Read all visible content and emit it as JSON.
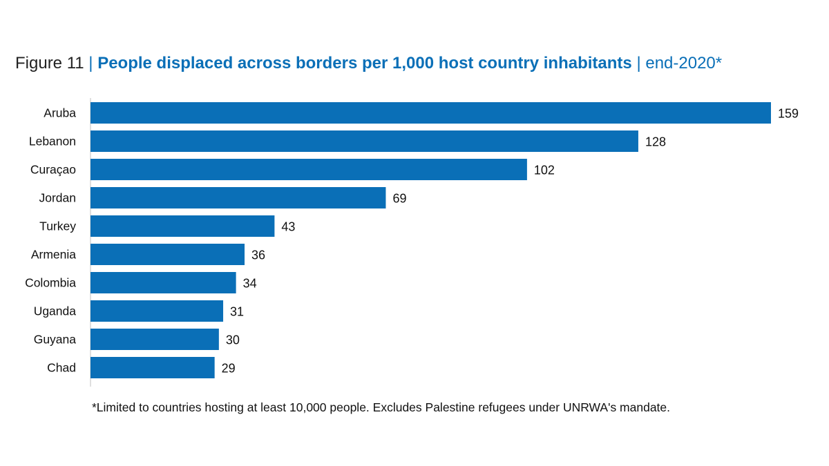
{
  "colors": {
    "bar": "#0a6fb7",
    "title_accent": "#0a6fb7",
    "axis": "#bfbfbf"
  },
  "chart_data": {
    "type": "bar",
    "orientation": "horizontal",
    "title": {
      "figure": "Figure 11",
      "separator": "|",
      "main": "People displaced across borders per 1,000 host country inhabitants",
      "date": "end-2020*"
    },
    "categories": [
      "Aruba",
      "Lebanon",
      "Curaçao",
      "Jordan",
      "Turkey",
      "Armenia",
      "Colombia",
      "Uganda",
      "Guyana",
      "Chad"
    ],
    "values": [
      159,
      128,
      102,
      69,
      43,
      36,
      34,
      31,
      30,
      29
    ],
    "xlim": [
      0,
      159
    ],
    "grid": false,
    "footnote": "*Limited to countries hosting at least 10,000 people. Excludes Palestine refugees under UNRWA's mandate."
  }
}
